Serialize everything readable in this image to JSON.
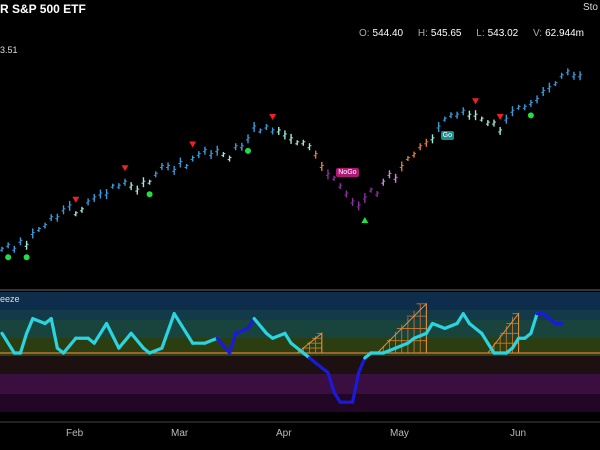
{
  "header": {
    "title_partial": "R S&P 500 ETF",
    "logo_partial": "Sto",
    "last_value_partial": "3.51",
    "ohlc": [
      {
        "key": "O:",
        "value": "544.40"
      },
      {
        "key": "H:",
        "value": "545.65"
      },
      {
        "key": "L:",
        "value": "543.02"
      },
      {
        "key": "V:",
        "value": "62.944m"
      }
    ]
  },
  "lower_panel": {
    "name_partial": "eeze"
  },
  "x_axis": {
    "labels": [
      "Feb",
      "Mar",
      "Apr",
      "May",
      "Jun"
    ]
  },
  "labels": {
    "nogo": "NoGo",
    "go": "Go"
  },
  "colors": {
    "background": "#000000",
    "strong_go": "#3a9ad9",
    "weak_go": "#9ee8d8",
    "weak_nogo": "#e07a3a",
    "strong_nogo": "#8b2fa0",
    "nogo_light": "#d880e0",
    "oscillator_main": "#2ad4e0",
    "oscillator_squeeze": "#1a1adc",
    "zero_line": "#e07a3a",
    "buy_dot": "#22dd44",
    "sell_triangle": "#ee2222"
  },
  "chart_data": [
    {
      "type": "line",
      "title": "R S&P 500 ETF",
      "description_of_series": "daily price bars colored by GoNoGo trend",
      "y_range_estimate": [
        490,
        550
      ],
      "price": [
        [
          0,
          500,
          "strong_go"
        ],
        [
          1,
          501,
          "strong_go"
        ],
        [
          2,
          500,
          "strong_go"
        ],
        [
          3,
          502,
          "strong_go"
        ],
        [
          4,
          501,
          "weak_go"
        ],
        [
          5,
          504,
          "strong_go"
        ],
        [
          6,
          505,
          "strong_go"
        ],
        [
          7,
          506,
          "strong_go"
        ],
        [
          8,
          508,
          "strong_go"
        ],
        [
          9,
          508,
          "strong_go"
        ],
        [
          10,
          510,
          "strong_go"
        ],
        [
          11,
          511,
          "strong_go"
        ],
        [
          12,
          509,
          "weak_go"
        ],
        [
          13,
          510,
          "weak_go"
        ],
        [
          14,
          512,
          "strong_go"
        ],
        [
          15,
          513,
          "strong_go"
        ],
        [
          16,
          514,
          "strong_go"
        ],
        [
          17,
          514,
          "strong_go"
        ],
        [
          18,
          516,
          "strong_go"
        ],
        [
          19,
          516,
          "strong_go"
        ],
        [
          20,
          517,
          "strong_go"
        ],
        [
          21,
          516,
          "weak_go"
        ],
        [
          22,
          515,
          "weak_go"
        ],
        [
          23,
          517,
          "weak_go"
        ],
        [
          24,
          517,
          "weak_go"
        ],
        [
          25,
          519,
          "strong_go"
        ],
        [
          26,
          521,
          "strong_go"
        ],
        [
          27,
          521,
          "strong_go"
        ],
        [
          28,
          520,
          "strong_go"
        ],
        [
          29,
          522,
          "strong_go"
        ],
        [
          30,
          521,
          "strong_go"
        ],
        [
          31,
          523,
          "strong_go"
        ],
        [
          32,
          524,
          "strong_go"
        ],
        [
          33,
          525,
          "strong_go"
        ],
        [
          34,
          524,
          "strong_go"
        ],
        [
          35,
          525,
          "strong_go"
        ],
        [
          36,
          524,
          "weak_go"
        ],
        [
          37,
          523,
          "weak_go"
        ],
        [
          38,
          526,
          "strong_go"
        ],
        [
          39,
          526,
          "strong_go"
        ],
        [
          40,
          528,
          "strong_go"
        ],
        [
          41,
          531,
          "strong_go"
        ],
        [
          42,
          530,
          "strong_go"
        ],
        [
          43,
          531,
          "strong_go"
        ],
        [
          44,
          530,
          "strong_go"
        ],
        [
          45,
          530,
          "weak_go"
        ],
        [
          46,
          529,
          "weak_go"
        ],
        [
          47,
          528,
          "weak_go"
        ],
        [
          48,
          527,
          "weak_go"
        ],
        [
          49,
          527,
          "weak_go"
        ],
        [
          50,
          526,
          "weak_go"
        ],
        [
          51,
          524,
          "weak_nogo"
        ],
        [
          52,
          521,
          "weak_nogo"
        ],
        [
          53,
          519,
          "strong_nogo"
        ],
        [
          54,
          518,
          "strong_nogo"
        ],
        [
          55,
          516,
          "strong_nogo"
        ],
        [
          56,
          514,
          "strong_nogo"
        ],
        [
          57,
          512,
          "strong_nogo"
        ],
        [
          58,
          511,
          "strong_nogo"
        ],
        [
          59,
          513,
          "strong_nogo"
        ],
        [
          60,
          515,
          "strong_nogo"
        ],
        [
          61,
          514,
          "strong_nogo"
        ],
        [
          62,
          517,
          "nogo_light"
        ],
        [
          63,
          519,
          "nogo_light"
        ],
        [
          64,
          518,
          "nogo_light"
        ],
        [
          65,
          521,
          "weak_nogo"
        ],
        [
          66,
          523,
          "weak_nogo"
        ],
        [
          67,
          524,
          "weak_nogo"
        ],
        [
          68,
          526,
          "weak_nogo"
        ],
        [
          69,
          527,
          "weak_nogo"
        ],
        [
          70,
          528,
          "weak_go"
        ],
        [
          71,
          531,
          "strong_go"
        ],
        [
          72,
          533,
          "strong_go"
        ],
        [
          73,
          534,
          "strong_go"
        ],
        [
          74,
          534,
          "strong_go"
        ],
        [
          75,
          535,
          "strong_go"
        ],
        [
          76,
          534,
          "weak_go"
        ],
        [
          77,
          534,
          "weak_go"
        ],
        [
          78,
          533,
          "weak_go"
        ],
        [
          79,
          532,
          "weak_go"
        ],
        [
          80,
          532,
          "weak_go"
        ],
        [
          81,
          530,
          "weak_go"
        ],
        [
          82,
          533,
          "strong_go"
        ],
        [
          83,
          535,
          "strong_go"
        ],
        [
          84,
          536,
          "strong_go"
        ],
        [
          85,
          536,
          "strong_go"
        ],
        [
          86,
          537,
          "strong_go"
        ],
        [
          87,
          538,
          "strong_go"
        ],
        [
          88,
          540,
          "strong_go"
        ],
        [
          89,
          541,
          "strong_go"
        ],
        [
          90,
          542,
          "strong_go"
        ],
        [
          91,
          544,
          "strong_go"
        ],
        [
          92,
          545,
          "strong_go"
        ],
        [
          93,
          544,
          "strong_go"
        ],
        [
          94,
          544,
          "strong_go"
        ]
      ],
      "buy_dots": [
        1,
        4,
        24,
        40,
        86
      ],
      "sell_triangles": [
        12,
        20,
        31,
        44,
        77,
        81
      ],
      "nogo_label_index": 55,
      "go_label_index": 71,
      "green_triangle_index": 59,
      "x_axis_ticks": [
        {
          "label": "Feb",
          "index": 12
        },
        {
          "label": "Mar",
          "index": 29
        },
        {
          "label": "Apr",
          "index": 47
        },
        {
          "label": "May",
          "index": 66
        },
        {
          "label": "Jun",
          "index": 85
        }
      ]
    },
    {
      "type": "line",
      "title": "eeze",
      "y_range": [
        -6,
        6
      ],
      "zero_line": 0,
      "oscillator": [
        [
          0,
          2,
          "main"
        ],
        [
          2,
          0,
          "main"
        ],
        [
          3,
          0,
          "main"
        ],
        [
          4,
          2,
          "main"
        ],
        [
          5,
          3.5,
          "main"
        ],
        [
          7,
          3,
          "main"
        ],
        [
          8,
          3.5,
          "main"
        ],
        [
          9,
          0.5,
          "main"
        ],
        [
          10,
          0,
          "main"
        ],
        [
          12,
          1.5,
          "main"
        ],
        [
          14,
          1.5,
          "main"
        ],
        [
          15,
          1,
          "main"
        ],
        [
          17,
          3,
          "main"
        ],
        [
          19,
          0.5,
          "main"
        ],
        [
          21,
          2,
          "main"
        ],
        [
          23,
          0.5,
          "main"
        ],
        [
          24,
          0,
          "main"
        ],
        [
          26,
          0.5,
          "main"
        ],
        [
          28,
          4,
          "main"
        ],
        [
          30,
          2,
          "main"
        ],
        [
          31,
          1,
          "main"
        ],
        [
          33,
          1,
          "main"
        ],
        [
          35,
          1.5,
          "main"
        ],
        [
          37,
          0,
          "squeeze"
        ],
        [
          38,
          2,
          "squeeze"
        ],
        [
          40,
          2.5,
          "squeeze"
        ],
        [
          41,
          3.5,
          "squeeze"
        ],
        [
          43,
          2,
          "main"
        ],
        [
          44,
          1.5,
          "main"
        ],
        [
          46,
          2,
          "main"
        ],
        [
          47,
          1,
          "main"
        ],
        [
          49,
          0,
          "main"
        ],
        [
          50,
          -0.5,
          "main"
        ],
        [
          51,
          -1,
          "squeeze"
        ],
        [
          53,
          -2,
          "squeeze"
        ],
        [
          54,
          -4,
          "squeeze"
        ],
        [
          55,
          -5,
          "squeeze"
        ],
        [
          57,
          -5,
          "squeeze"
        ],
        [
          58,
          -2,
          "squeeze"
        ],
        [
          59,
          -0.5,
          "squeeze"
        ],
        [
          60,
          0,
          "main"
        ],
        [
          62,
          0,
          "main"
        ],
        [
          64,
          0.5,
          "main"
        ],
        [
          66,
          1,
          "main"
        ],
        [
          67,
          1.5,
          "main"
        ],
        [
          69,
          2,
          "main"
        ],
        [
          70,
          3,
          "main"
        ],
        [
          72,
          2.5,
          "main"
        ],
        [
          74,
          3,
          "main"
        ],
        [
          75,
          4,
          "main"
        ],
        [
          76,
          3,
          "main"
        ],
        [
          78,
          2,
          "main"
        ],
        [
          79,
          1,
          "main"
        ],
        [
          80,
          0,
          "main"
        ],
        [
          82,
          0,
          "main"
        ],
        [
          83,
          0.5,
          "main"
        ],
        [
          84,
          1.5,
          "main"
        ],
        [
          85,
          1.5,
          "main"
        ],
        [
          86,
          2,
          "main"
        ],
        [
          87,
          4,
          "main"
        ],
        [
          88,
          4,
          "squeeze"
        ],
        [
          89,
          3.5,
          "squeeze"
        ],
        [
          90,
          3,
          "squeeze"
        ],
        [
          91,
          3,
          "squeeze"
        ]
      ],
      "squeeze_grids": [
        {
          "start": 48,
          "end": 52,
          "peak": 2
        },
        {
          "start": 61,
          "end": 69,
          "peak": 5
        },
        {
          "start": 79,
          "end": 84,
          "peak": 4
        }
      ]
    }
  ]
}
